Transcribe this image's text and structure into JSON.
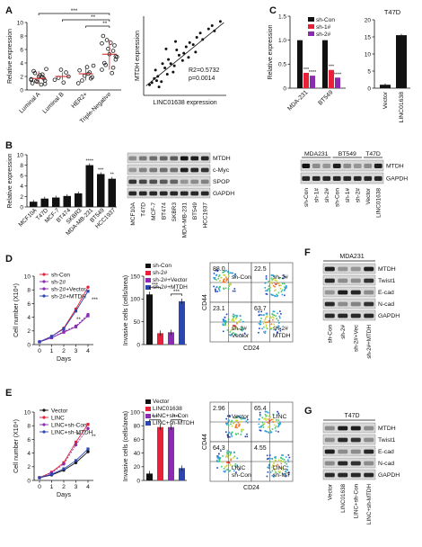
{
  "panels": {
    "A": "A",
    "B": "B",
    "C": "C",
    "D": "D",
    "E": "E",
    "F": "F",
    "G": "G"
  },
  "chart_data": [
    {
      "id": "A-left",
      "type": "scatter",
      "ylabel": "Relative expression",
      "ylim": [
        0,
        10
      ],
      "yticks": [
        "0",
        "2",
        "4",
        "6",
        "8",
        "10"
      ],
      "categories": [
        "Luminal A",
        "Luminal B",
        "HER2+",
        "Triple-Negative"
      ],
      "series": [
        {
          "values": [
            [
              1.6,
              1.4,
              1.9,
              2.2,
              1.2,
              2.5,
              1.0,
              3.1,
              1.7,
              0.8,
              2.0,
              1.3,
              2.8,
              1.5,
              0.9,
              2.3
            ],
            [
              1.5,
              2.0,
              2.6,
              1.1,
              3.0,
              1.8
            ],
            [
              1.0,
              1.9,
              2.6,
              3.4,
              2.1,
              1.4,
              2.9,
              3.6,
              1.7,
              2.4
            ],
            [
              3.0,
              4.5,
              5.8,
              7.0,
              6.1,
              3.7,
              8.0,
              4.9,
              6.6,
              2.5,
              5.3,
              7.4,
              4.0,
              6.9,
              5.0,
              3.3
            ]
          ]
        }
      ],
      "significance": [
        "***",
        "**",
        "**"
      ],
      "colors": {
        "points": "#1a1a1a",
        "median": "#cc2222"
      }
    },
    {
      "id": "A-right",
      "type": "scatter",
      "xlabel": "LINC01638 expression",
      "ylabel": "MTDH expression",
      "annotations": [
        "R2=0.5732",
        "p=0.0014"
      ],
      "series": [
        {
          "x": [
            0.5,
            0.9,
            1.2,
            1.0,
            1.5,
            1.8,
            2.0,
            2.3,
            2.1,
            2.6,
            3.0,
            2.8,
            3.3,
            3.6,
            3.9,
            4.2,
            4.5,
            1.3,
            0.7,
            1.6,
            2.5,
            3.4,
            4.8,
            5.0,
            5.5,
            6.0,
            1.1,
            1.9,
            2.7,
            3.8,
            4.4,
            5.8,
            6.5
          ],
          "y": [
            1.0,
            1.6,
            1.8,
            2.4,
            1.3,
            2.6,
            2.0,
            3.0,
            3.4,
            2.8,
            3.8,
            4.3,
            3.3,
            4.6,
            5.0,
            4.8,
            5.5,
            0.8,
            1.2,
            3.0,
            2.2,
            4.0,
            5.9,
            5.3,
            6.3,
            6.1,
            1.4,
            4.4,
            5.1,
            3.6,
            4.1,
            6.6,
            7.0
          ]
        }
      ]
    },
    {
      "id": "C-left",
      "type": "bar",
      "ylabel": "Relative expression",
      "ylim": [
        0,
        1.5
      ],
      "yticks": [
        "0",
        "0.5",
        "1.0",
        "1.5"
      ],
      "categories": [
        "MDA-231",
        "BT549"
      ],
      "legend": [
        "sh-Con",
        "sh-1#",
        "sh-2#"
      ],
      "colors": [
        "#111111",
        "#e8203a",
        "#8a2bb0"
      ],
      "series": [
        {
          "name": "sh-Con",
          "values": [
            1.0,
            1.0
          ]
        },
        {
          "name": "sh-1#",
          "values": [
            0.32,
            0.38
          ]
        },
        {
          "name": "sh-2#",
          "values": [
            0.26,
            0.22
          ]
        }
      ],
      "significance": [
        "***",
        "****",
        "***",
        "****"
      ]
    },
    {
      "id": "C-right",
      "type": "bar",
      "title": "T47D",
      "ylim": [
        0,
        20
      ],
      "yticks": [
        "0",
        "5",
        "10",
        "15",
        "20"
      ],
      "categories": [
        "Vector",
        "LINC01638"
      ],
      "values": [
        1,
        15.5
      ],
      "colors": [
        "#111111",
        "#111111"
      ]
    },
    {
      "id": "B-chart",
      "type": "bar",
      "ylabel": "Relative expression",
      "ylim": [
        0,
        10
      ],
      "yticks": [
        "0",
        "2",
        "4",
        "6",
        "8",
        "10"
      ],
      "categories": [
        "MCF10A",
        "T47D",
        "MCF-7",
        "BT474",
        "SKBR3",
        "MDA-MB-231",
        "BT549",
        "HCC1937"
      ],
      "values": [
        1.0,
        1.6,
        1.8,
        2.1,
        2.6,
        8.0,
        6.3,
        5.4
      ],
      "significance": [
        "",
        "",
        "",
        "",
        "",
        "****",
        "***",
        "**"
      ],
      "colors": [
        "#111111"
      ]
    },
    {
      "id": "D-left",
      "type": "line",
      "xlabel": "Days",
      "ylabel": "Cell number (X10⁴)",
      "ylim": [
        0,
        10
      ],
      "yticks": [
        "0",
        "2",
        "4",
        "6",
        "8",
        "10"
      ],
      "x": [
        0,
        1,
        2,
        3,
        4
      ],
      "colors": [
        "#e8203a",
        "#8a2bb0",
        "#8a2bb0",
        "#2a46b0"
      ],
      "series": [
        {
          "name": "sh-Con",
          "values": [
            0.4,
            1.2,
            2.4,
            5.2,
            8.4
          ]
        },
        {
          "name": "sh-2#",
          "values": [
            0.4,
            1.0,
            1.8,
            2.6,
            4.2
          ]
        },
        {
          "name": "sh-2#+Vector",
          "values": [
            0.4,
            1.0,
            1.9,
            2.7,
            4.4
          ]
        },
        {
          "name": "sh-2#+MTDH",
          "values": [
            0.4,
            1.2,
            2.3,
            4.9,
            7.8
          ]
        }
      ],
      "significance": [
        "**",
        "***"
      ]
    },
    {
      "id": "D-mid",
      "type": "bar",
      "ylabel": "Invasive cells (cells/area)",
      "ylim": [
        0,
        150
      ],
      "yticks": [
        "0",
        "50",
        "100",
        "150"
      ],
      "categories": [
        "sh-Con",
        "sh-2#",
        "sh-2#+Vector",
        "sh-2#+MTDH"
      ],
      "values": [
        110,
        25,
        27,
        95
      ],
      "colors": [
        "#111111",
        "#e8203a",
        "#8a2bb0",
        "#2a46b0"
      ],
      "significance": [
        "***",
        "***"
      ]
    },
    {
      "id": "E-left",
      "type": "line",
      "xlabel": "Days",
      "ylabel": "Cell number (X10⁴)",
      "ylim": [
        0,
        10
      ],
      "yticks": [
        "0",
        "2",
        "4",
        "6",
        "8",
        "10"
      ],
      "x": [
        0,
        1,
        2,
        3,
        4
      ],
      "colors": [
        "#111111",
        "#e8203a",
        "#8a2bb0",
        "#2a46b0"
      ],
      "series": [
        {
          "name": "Vector",
          "values": [
            0.4,
            0.8,
            1.5,
            2.6,
            4.2
          ]
        },
        {
          "name": "LINC",
          "values": [
            0.4,
            1.2,
            2.6,
            5.6,
            8.2
          ]
        },
        {
          "name": "LINC+sh-Con",
          "values": [
            0.4,
            1.1,
            2.4,
            5.2,
            7.6
          ]
        },
        {
          "name": "LINC+sh-MTDH",
          "values": [
            0.4,
            0.9,
            1.7,
            2.9,
            4.6
          ]
        }
      ],
      "significance": [
        "**",
        "**"
      ]
    },
    {
      "id": "E-mid",
      "type": "bar",
      "ylabel": "Invasive cells (cells/area)",
      "ylim": [
        0,
        100
      ],
      "yticks": [
        "0",
        "20",
        "40",
        "60",
        "80",
        "100"
      ],
      "categories": [
        "Vector",
        "LINC01638",
        "LINC+sh-Con",
        "LINC+sh-MTDH"
      ],
      "values": [
        10,
        78,
        78,
        18
      ],
      "colors": [
        "#111111",
        "#e8203a",
        "#8a2bb0",
        "#2a46b0"
      ],
      "significance": [
        "***",
        "***"
      ]
    }
  ],
  "blots": {
    "B_mid": {
      "proteins": [
        "MTDH",
        "c-Myc",
        "SPOP",
        "GAPDH"
      ],
      "lanes": [
        "MCF10A",
        "T47D",
        "MCF-7",
        "BT474",
        "SKBR3",
        "MDA-MB-231",
        "BT549",
        "HCC1937"
      ],
      "intensity": [
        [
          0.35,
          0.45,
          0.5,
          0.55,
          0.6,
          0.95,
          0.9,
          0.85
        ],
        [
          0.3,
          0.4,
          0.45,
          0.5,
          0.5,
          0.9,
          0.85,
          0.8
        ],
        [
          0.8,
          0.7,
          0.65,
          0.6,
          0.55,
          0.3,
          0.35,
          0.4
        ],
        [
          0.85,
          0.85,
          0.85,
          0.85,
          0.85,
          0.85,
          0.85,
          0.85
        ]
      ]
    },
    "B_right": {
      "groups": [
        "MDA231",
        "BT549",
        "T47D"
      ],
      "proteins": [
        "MTDH",
        "GAPDH"
      ],
      "lanes": [
        "sh-Con",
        "sh-1#",
        "sh-2#",
        "sh-Con",
        "sh-1#",
        "sh-2#",
        "Vector",
        "LINC01638"
      ],
      "intensity": [
        [
          0.95,
          0.35,
          0.3,
          0.9,
          0.35,
          0.3,
          0.35,
          0.9
        ],
        [
          0.85,
          0.85,
          0.85,
          0.85,
          0.85,
          0.85,
          0.85,
          0.85
        ]
      ]
    },
    "F": {
      "title": "MDA231",
      "proteins": [
        "MTDH",
        "Twist1",
        "E-cad",
        "N-cad",
        "GAPDH"
      ],
      "lanes": [
        "sh-Con",
        "sh-2#",
        "sh-2#+Vec",
        "sh-2#+MTDH"
      ],
      "intensity": [
        [
          0.9,
          0.3,
          0.3,
          0.9
        ],
        [
          0.85,
          0.35,
          0.35,
          0.8
        ],
        [
          0.3,
          0.9,
          0.85,
          0.35
        ],
        [
          0.85,
          0.35,
          0.4,
          0.8
        ],
        [
          0.85,
          0.85,
          0.85,
          0.85
        ]
      ]
    },
    "G": {
      "title": "T47D",
      "proteins": [
        "MTDH",
        "Twist1",
        "E-cad",
        "N-cad",
        "GAPDH"
      ],
      "lanes": [
        "Vector",
        "LINC01638",
        "LINC+sh-Con",
        "LINC+sh-MTDH"
      ],
      "intensity": [
        [
          0.35,
          0.9,
          0.9,
          0.35
        ],
        [
          0.35,
          0.85,
          0.8,
          0.35
        ],
        [
          0.9,
          0.35,
          0.35,
          0.85
        ],
        [
          0.35,
          0.85,
          0.8,
          0.35
        ],
        [
          0.85,
          0.85,
          0.85,
          0.85
        ]
      ]
    }
  },
  "flow": {
    "axis_x": "CD24",
    "axis_y": "CD44",
    "D": [
      {
        "value": "88.0",
        "label": "sh-Con"
      },
      {
        "value": "22.5",
        "label": "sh-2#"
      },
      {
        "value": "23.1",
        "label": "sh-2#\nVector"
      },
      {
        "value": "63.7",
        "label": "sh-2#\nMTDH"
      }
    ],
    "E": [
      {
        "value": "2.96",
        "label": "Vector"
      },
      {
        "value": "65.4",
        "label": "LINC"
      },
      {
        "value": "64.3",
        "label": "LINC\nsh-Con"
      },
      {
        "value": "4.55",
        "label": "LINC\nsh-MT"
      }
    ]
  }
}
